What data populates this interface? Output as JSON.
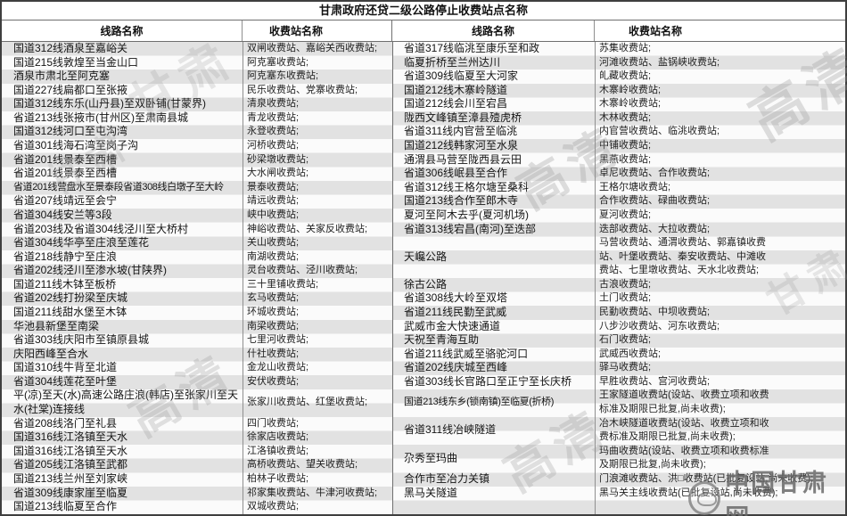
{
  "title": "甘肃政府还贷二级公路停止收费站点名称",
  "columns": {
    "route_header": "线路名称",
    "station_header": "收费站名称"
  },
  "sections": {
    "left": {
      "rows": [
        {
          "route": "国道312线酒泉至嘉峪关",
          "station": "双闸收费站、嘉峪关西收费站;",
          "lines": 1
        },
        {
          "route": "国道215线敦煌至当金山口",
          "station": "阿克塞收费站;",
          "lines": 1
        },
        {
          "route": "酒泉市肃北至阿克塞",
          "station": "阿克塞东收费站;",
          "lines": 1
        },
        {
          "route": "国道227线扁都口至张掖",
          "station": "民乐收费站、党寨收费站;",
          "lines": 1
        },
        {
          "route": "国道312线东乐(山丹县)至双卧铺(甘蒙界)",
          "station": "清泉收费站;",
          "lines": 1
        },
        {
          "route": "省道213线张掖市(甘州区)至肃南县城",
          "station": "青龙收费站;",
          "lines": 1
        },
        {
          "route": "国道312线河口至屯沟湾",
          "station": "永登收费站;",
          "lines": 1
        },
        {
          "route": "省道301线海石湾至岗子沟",
          "station": "河桥收费站;",
          "lines": 1
        },
        {
          "route": "省道201线景泰至西槽",
          "station": "砂梁墩收费站;",
          "lines": 1
        },
        {
          "route": "省道201线景泰至西槽",
          "station": "大水闸收费站;",
          "lines": 1
        },
        {
          "route": "省道201线营盘水至景泰段省道308线白墩子至大岭",
          "station": "景泰收费站;",
          "lines": 1,
          "fit": true
        },
        {
          "route": "省道207线靖远至会宁",
          "station": "靖远收费站;",
          "lines": 1
        },
        {
          "route": "省道304线安兰等3段",
          "station": "峡中收费站;",
          "lines": 1
        },
        {
          "route": "省道203线及省道304线泾川至大桥村",
          "station": "神峪收费站、关家反收费站;",
          "lines": 1
        },
        {
          "route": "省道304线华亭至庄浪至莲花",
          "station": "关山收费站;",
          "lines": 1
        },
        {
          "route": "省道218线静宁至庄浪",
          "station": "南湖收费站;",
          "lines": 1
        },
        {
          "route": "省道202线泾川至渗水坡(甘陕界)",
          "station": "灵台收费站、泾川收费站;",
          "lines": 1
        },
        {
          "route": "国道211线木钵至板桥",
          "station": "三十里铺收费站;",
          "lines": 1
        },
        {
          "route": "省道202线打扮梁至庆城",
          "station": "玄马收费站;",
          "lines": 1
        },
        {
          "route": "国道211线甜水堡至木钵",
          "station": "环城收费站;",
          "lines": 1
        },
        {
          "route": "华池县新堡至南梁",
          "station": "南梁收费站;",
          "lines": 1
        },
        {
          "route": "省道303线庆阳市至镇原县城",
          "station": "七里河收费站;",
          "lines": 1
        },
        {
          "route": "庆阳西峰至合水",
          "station": "什社收费站;",
          "lines": 1
        },
        {
          "route": "国道310线牛背至北道",
          "station": "金龙山收费站;",
          "lines": 1
        },
        {
          "route": "省道304线莲花至叶堡",
          "station": "安伏收费站;",
          "lines": 1
        },
        {
          "route": "平(凉)至天(水)高速公路庄浪(韩店)至张家川至天水(社棠)连接线",
          "station": "张家川收费站、红堡收费站;",
          "lines": 2
        },
        {
          "route": "省道208线洛门至礼县",
          "station": "四门收费站;",
          "lines": 1
        },
        {
          "route": "国道316线江洛镇至天水",
          "station": "徐家店收费站;",
          "lines": 1
        },
        {
          "route": "国道316线江洛镇至天水",
          "station": "江洛镇收费站;",
          "lines": 1
        },
        {
          "route": "省道205线江洛镇至武都",
          "station": "高桥收费站、望关收费站;",
          "lines": 1
        },
        {
          "route": "国道213线兰州至刘家峡",
          "station": "柏林子收费站;",
          "lines": 1
        },
        {
          "route": "省道309线康家崖至临夏",
          "station": "祁家集收费站、牛津河收费站;",
          "lines": 1
        },
        {
          "route": "国道213线临夏至合作",
          "station": "双城收费站;",
          "lines": 1
        }
      ]
    },
    "right": {
      "rows": [
        {
          "route": "省道317线临洮至康乐至和政",
          "station": "苏集收费站;",
          "lines": 1
        },
        {
          "route": "临夏折桥至兰州达川",
          "station": "河滩收费站、盐锅峡收费站;",
          "lines": 1
        },
        {
          "route": "省道309线临夏至大河家",
          "station": "癿藏收费站;",
          "lines": 1
        },
        {
          "route": "国道212线木寨岭隧道",
          "station": "木寨岭收费站;",
          "lines": 1
        },
        {
          "route": "国道212线会川至宕昌",
          "station": "木寨岭收费站;",
          "lines": 1
        },
        {
          "route": "陇西文峰镇至漳县殪虎桥",
          "station": "木林收费站;",
          "lines": 1
        },
        {
          "route": "省道311线内官营至临洮",
          "station": "内官营收费站、临洮收费站;",
          "lines": 1
        },
        {
          "route": "国道212线韩家河至水泉",
          "station": "中铺收费站;",
          "lines": 1
        },
        {
          "route": "通渭县马营至陇西县云田",
          "station": "黑燕收费站;",
          "lines": 1
        },
        {
          "route": "省道306线岷县至合作",
          "station": "卓尼收费站、合作收费站;",
          "lines": 1
        },
        {
          "route": "省道312线王格尔塘至桑科",
          "station": "王格尔塘收费站;",
          "lines": 1
        },
        {
          "route": "国道213线合作至郎木寺",
          "station": "合作收费站、碌曲收费站;",
          "lines": 1
        },
        {
          "route": "夏河至阿木去乎(夏河机场)",
          "station": "夏河收费站;",
          "lines": 1
        },
        {
          "route": "省道313线宕昌(南河)至迭部",
          "station": "迭部收费站、大拉收费站;",
          "lines": 1
        },
        {
          "route": "天巉公路",
          "station": "马营收费站、通渭收费站、郭嘉镇收费站、叶堡收费站、秦安收费站、中滩收费站、七里墩收费站、天水北收费站;",
          "lines": 3
        },
        {
          "route": "徐古公路",
          "station": "古浪收费站;",
          "lines": 1
        },
        {
          "route": "省道308线大岭至双塔",
          "station": "土门收费站;",
          "lines": 1
        },
        {
          "route": "省道211线民勤至武威",
          "station": "民勤收费站、中坝收费站;",
          "lines": 1
        },
        {
          "route": "武威市金大快速通道",
          "station": "八步沙收费站、河东收费站;",
          "lines": 1
        },
        {
          "route": "天祝至青海互助",
          "station": "石门收费站;",
          "lines": 1
        },
        {
          "route": "省道211线武威至骆驼河口",
          "station": "武威西收费站;",
          "lines": 1
        },
        {
          "route": "省道202线庆城至西峰",
          "station": "驿马收费站;",
          "lines": 1
        },
        {
          "route": "省道303线长官路口至正宁至长庆桥",
          "station": "早胜收费站、宫河收费站;",
          "lines": 1
        },
        {
          "route": "国道213线东乡(锁南镇)至临夏(折桥)",
          "station": "王家隧道收费站(设站、收费立项和收费标准及期限已批复,尚未收费);",
          "lines": 2,
          "fit": true
        },
        {
          "route": "省道311线冶峡隧道",
          "station": "冶木峡隧道收费站(设站、收费立项和收费标准及期限已批复,尚未收费);",
          "lines": 2
        },
        {
          "route": "尕秀至玛曲",
          "station": "玛曲收费站(设站、收费立项和收费标准及期限已批复,尚未收费);",
          "lines": 2
        },
        {
          "route": "合作市至冶力关镇",
          "station": "门浪滩收费站、洪□收费站(已批复设站,尚未收费);",
          "lines": 1
        },
        {
          "route": "黑马关隧道",
          "station": "黑马关主线收费站(已批复设站,尚未收费);",
          "lines": 1
        }
      ]
    }
  },
  "watermarks": {
    "diagonal": [
      "高清",
      "高清",
      "甘肃",
      "甘肃",
      "高清",
      "高清",
      "甘肃"
    ],
    "site": "中国甘肃网"
  },
  "colors": {
    "stripe_gray": "#e2e2e2",
    "stripe_white": "#fbfbfb",
    "border_dark": "#3f3f3f",
    "border_light": "#8f8f8f",
    "watermark_gray": "#969696"
  }
}
